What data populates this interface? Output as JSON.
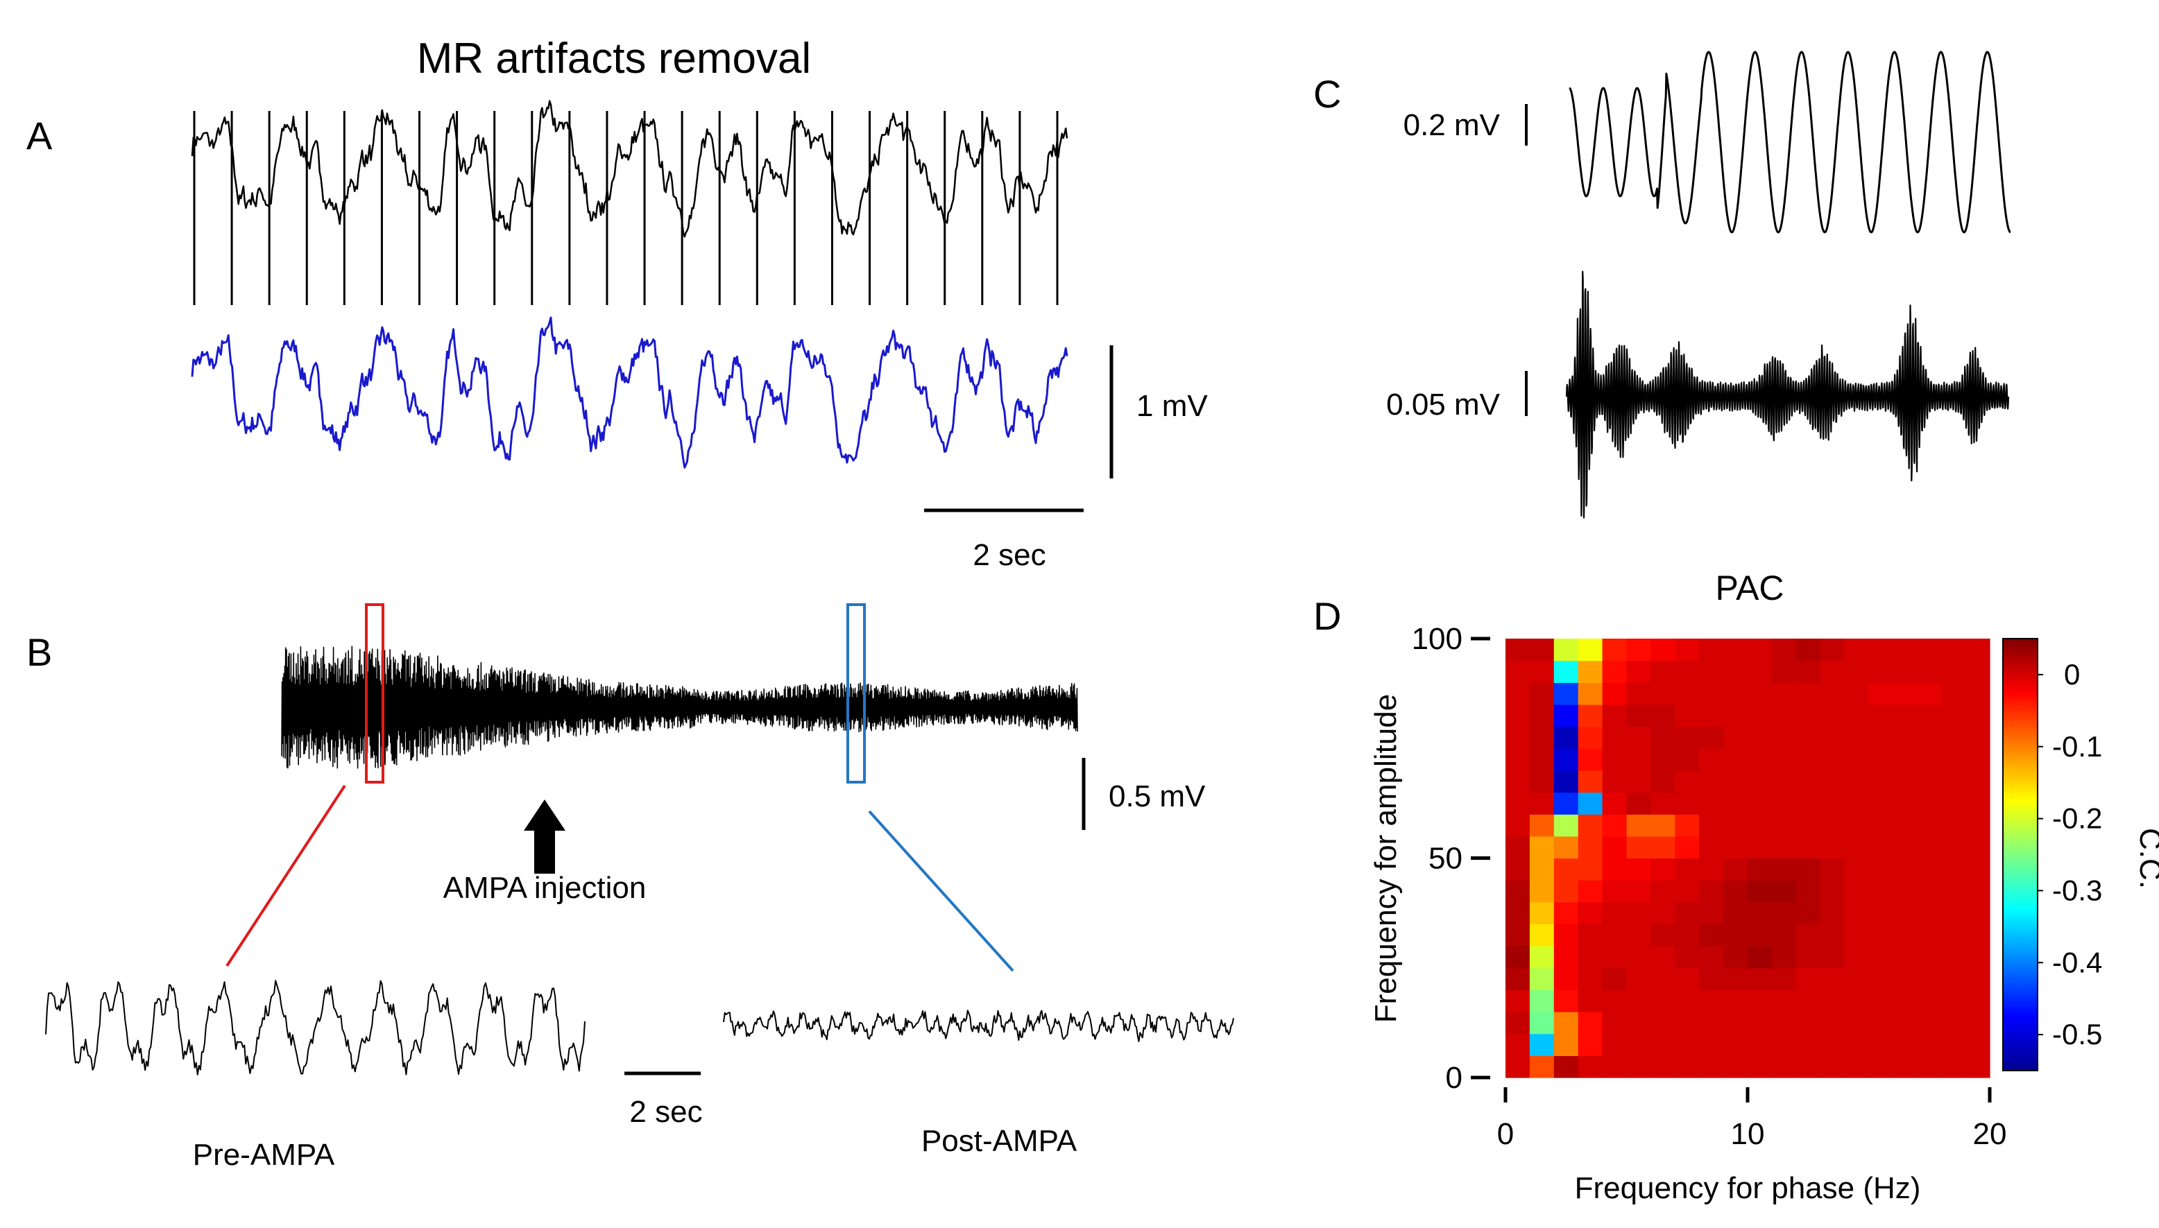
{
  "figure": {
    "title_A": "MR artifacts removal",
    "panels": {
      "A": "A",
      "B": "B",
      "C": "C",
      "D": "D"
    }
  },
  "panel_A": {
    "scale_voltage": "1 mV",
    "scale_time": "2 sec",
    "raw_trace_color": "#000000",
    "cleaned_trace_color": "#1a1acc"
  },
  "panel_B": {
    "scale_voltage": "0.5 mV",
    "scale_time": "2 sec",
    "arrow_label": "AMPA injection",
    "pre_label": "Pre-AMPA",
    "post_label": "Post-AMPA",
    "pre_box_color": "#e01b1b",
    "post_box_color": "#2377c4"
  },
  "panel_C": {
    "scale_top": "0.2 mV",
    "scale_bottom": "0.05 mV"
  },
  "chart_data": {
    "type": "heatmap",
    "title": "PAC",
    "xlabel": "Frequency for phase (Hz)",
    "ylabel": "Frequency for amplitude",
    "colorbar_label": "C.C.",
    "xlim": [
      0,
      20
    ],
    "ylim": [
      0,
      100
    ],
    "xticks": [
      "0",
      "10",
      "20"
    ],
    "yticks": [
      "0",
      "50",
      "100"
    ],
    "colorbar_ticks": [
      "0",
      "-0.1",
      "-0.2",
      "-0.3",
      "-0.4",
      "-0.5"
    ],
    "clim": [
      -0.55,
      0.05
    ],
    "x_bins": [
      0.5,
      1.5,
      2.5,
      3.5,
      4.5,
      5.5,
      6.5,
      7.5,
      8.5,
      9.5,
      10.5,
      11.5,
      12.5,
      13.5,
      14.5,
      15.5,
      16.5,
      17.5,
      18.5,
      19.5
    ],
    "y_bins": [
      2.5,
      7.5,
      12.5,
      17.5,
      22.5,
      27.5,
      32.5,
      37.5,
      42.5,
      47.5,
      52.5,
      57.5,
      62.5,
      67.5,
      72.5,
      77.5,
      82.5,
      87.5,
      92.5,
      97.5
    ],
    "values_note": "rows ordered from y=2.5 (bottom) to y=97.5 (top)",
    "values": [
      [
        0.0,
        -0.07,
        0.02,
        0.0,
        0.0,
        0.0,
        0.0,
        0.0,
        0.0,
        0.0,
        0.0,
        0.0,
        0.0,
        0.0,
        0.0,
        0.0,
        0.0,
        0.0,
        0.0,
        0.0
      ],
      [
        0.0,
        -0.36,
        -0.1,
        -0.03,
        0.0,
        0.0,
        0.0,
        0.0,
        0.0,
        0.0,
        0.0,
        0.0,
        0.0,
        0.0,
        0.0,
        0.0,
        0.0,
        0.0,
        0.0,
        0.0
      ],
      [
        0.01,
        -0.26,
        -0.1,
        -0.03,
        0.0,
        0.0,
        0.0,
        0.0,
        0.0,
        0.0,
        0.0,
        0.0,
        0.0,
        0.0,
        0.0,
        0.0,
        0.0,
        0.0,
        0.0,
        0.0
      ],
      [
        0.0,
        -0.25,
        -0.03,
        0.0,
        0.0,
        0.0,
        0.0,
        0.0,
        0.0,
        0.0,
        0.0,
        0.0,
        0.0,
        0.0,
        0.0,
        0.0,
        0.0,
        0.0,
        0.0,
        0.0
      ],
      [
        0.02,
        -0.22,
        -0.02,
        0.0,
        0.01,
        0.0,
        0.0,
        0.0,
        0.01,
        0.01,
        0.01,
        0.01,
        0.0,
        0.0,
        0.0,
        0.0,
        0.0,
        0.0,
        0.0,
        0.0
      ],
      [
        0.03,
        -0.2,
        -0.02,
        0.0,
        0.0,
        0.0,
        0.0,
        0.01,
        0.01,
        0.02,
        0.03,
        0.02,
        0.01,
        0.01,
        0.0,
        0.0,
        0.0,
        0.0,
        0.0,
        0.0
      ],
      [
        0.02,
        -0.16,
        -0.02,
        0.0,
        0.0,
        0.0,
        0.01,
        0.01,
        0.02,
        0.02,
        0.02,
        0.02,
        0.01,
        0.01,
        0.0,
        0.0,
        0.0,
        0.0,
        0.0,
        0.0
      ],
      [
        0.02,
        -0.14,
        -0.03,
        -0.01,
        0.0,
        0.0,
        0.0,
        0.01,
        0.01,
        0.02,
        0.02,
        0.02,
        0.02,
        0.01,
        0.0,
        0.0,
        0.0,
        0.0,
        0.0,
        0.0
      ],
      [
        0.02,
        -0.12,
        -0.05,
        -0.03,
        -0.01,
        -0.01,
        0.0,
        0.0,
        0.01,
        0.02,
        0.03,
        0.03,
        0.02,
        0.01,
        0.0,
        0.0,
        0.0,
        0.0,
        0.0,
        0.0
      ],
      [
        0.01,
        -0.12,
        -0.05,
        -0.05,
        -0.02,
        -0.02,
        -0.01,
        0.0,
        0.0,
        0.01,
        0.02,
        0.02,
        0.02,
        0.01,
        0.0,
        0.0,
        0.0,
        0.0,
        0.0,
        0.0
      ],
      [
        0.01,
        -0.12,
        -0.1,
        -0.05,
        -0.02,
        -0.05,
        -0.05,
        -0.03,
        0.0,
        0.0,
        0.0,
        0.0,
        0.0,
        0.0,
        0.0,
        0.0,
        0.0,
        0.0,
        0.0,
        0.0
      ],
      [
        0.0,
        -0.08,
        -0.22,
        -0.05,
        -0.03,
        -0.08,
        -0.08,
        -0.04,
        0.0,
        0.0,
        0.0,
        0.0,
        0.0,
        0.0,
        0.0,
        0.0,
        0.0,
        0.0,
        0.0,
        0.0
      ],
      [
        0.0,
        0.0,
        -0.45,
        -0.38,
        -0.01,
        0.01,
        0.0,
        0.0,
        0.0,
        0.0,
        0.0,
        0.0,
        0.0,
        0.0,
        0.0,
        0.0,
        0.0,
        0.0,
        0.0,
        0.0
      ],
      [
        0.0,
        0.01,
        -0.52,
        -0.05,
        0.0,
        0.0,
        0.01,
        0.0,
        0.0,
        0.0,
        0.0,
        0.0,
        0.0,
        0.0,
        0.0,
        0.0,
        0.0,
        0.0,
        0.0,
        0.0
      ],
      [
        0.0,
        0.01,
        -0.5,
        -0.03,
        0.0,
        0.0,
        0.01,
        0.01,
        0.0,
        0.0,
        0.0,
        0.0,
        0.0,
        0.0,
        0.0,
        0.0,
        0.0,
        0.0,
        0.0,
        0.0
      ],
      [
        0.0,
        0.01,
        -0.52,
        -0.04,
        0.0,
        0.0,
        0.01,
        0.01,
        0.01,
        0.0,
        0.0,
        0.0,
        0.0,
        0.0,
        0.0,
        0.0,
        0.0,
        0.0,
        0.0,
        0.0
      ],
      [
        0.0,
        0.01,
        -0.48,
        -0.05,
        0.0,
        0.01,
        0.01,
        0.0,
        0.0,
        0.0,
        0.0,
        0.0,
        0.0,
        0.0,
        0.0,
        0.0,
        0.0,
        0.0,
        0.0,
        0.0
      ],
      [
        0.0,
        0.01,
        -0.44,
        -0.1,
        -0.02,
        0.0,
        0.0,
        0.0,
        0.0,
        0.0,
        0.0,
        0.0,
        0.0,
        0.0,
        0.0,
        -0.01,
        -0.01,
        -0.01,
        0.0,
        0.0
      ],
      [
        0.0,
        0.0,
        -0.32,
        -0.12,
        -0.03,
        -0.01,
        0.0,
        0.0,
        0.0,
        0.0,
        0.0,
        0.01,
        0.01,
        0.0,
        0.0,
        0.0,
        0.0,
        0.0,
        0.0,
        0.0
      ],
      [
        0.01,
        0.01,
        -0.2,
        -0.18,
        -0.04,
        -0.03,
        -0.02,
        -0.01,
        0.0,
        0.0,
        0.0,
        0.01,
        0.02,
        0.01,
        0.0,
        0.0,
        0.0,
        0.0,
        0.0,
        0.0
      ]
    ]
  }
}
